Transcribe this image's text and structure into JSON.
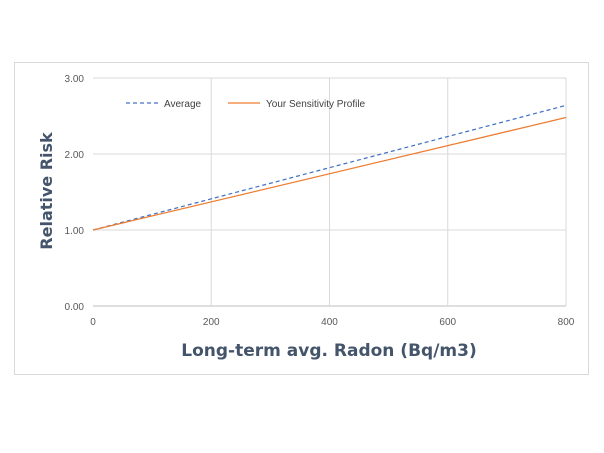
{
  "chart_data": {
    "type": "line",
    "title": "",
    "xlabel": "Long-term avg. Radon (Bq/m3)",
    "ylabel": "Relative Risk",
    "xlim": [
      0,
      800
    ],
    "ylim": [
      0,
      3
    ],
    "x_ticks": [
      "0",
      "200",
      "400",
      "600",
      "800"
    ],
    "y_ticks": [
      "0.00",
      "1.00",
      "2.00",
      "3.00"
    ],
    "grid": true,
    "legend": "top-left",
    "series": [
      {
        "name": "Average",
        "x": [
          0,
          800
        ],
        "y": [
          1.0,
          2.64
        ],
        "color": "#4472c4",
        "style": "dashed"
      },
      {
        "name": "Your Sensitivity Profile",
        "x": [
          0,
          800
        ],
        "y": [
          1.0,
          2.48
        ],
        "color": "#ed7d31",
        "style": "solid"
      }
    ]
  }
}
